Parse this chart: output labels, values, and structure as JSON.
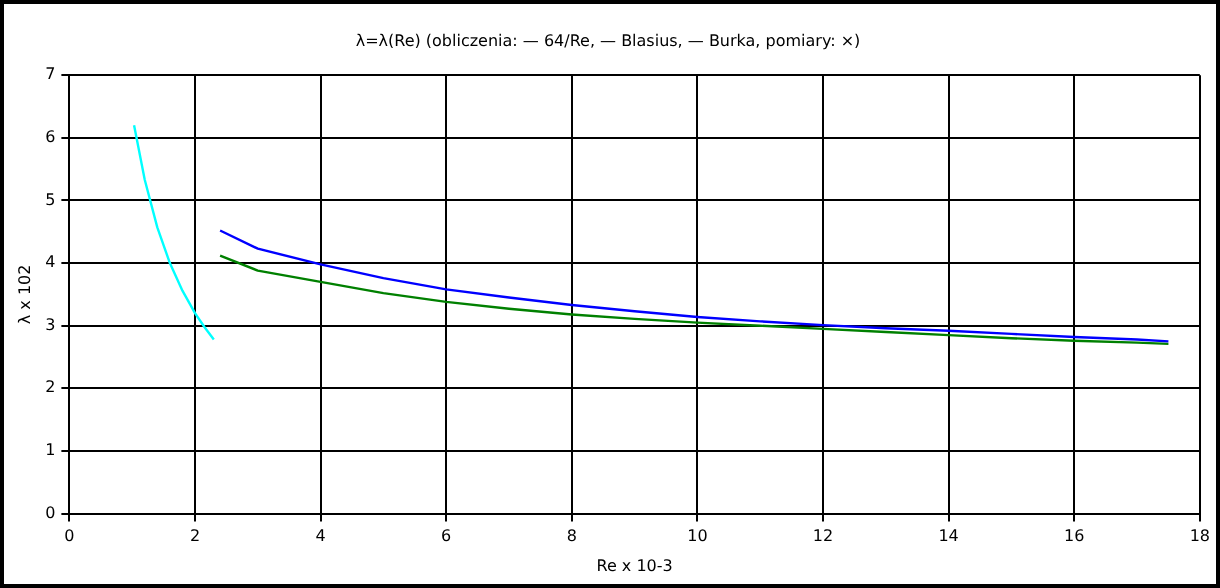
{
  "chart_data": {
    "type": "line",
    "title": "λ=λ(Re) (obliczenia: — 64/Re, — Blasius, — Burka, pomiary: ×)",
    "xlabel": "Re x 10-3",
    "ylabel": "λ x 102",
    "xlim": [
      0,
      18
    ],
    "xticks": [
      0,
      2,
      4,
      6,
      8,
      10,
      12,
      14,
      16,
      18
    ],
    "ylim": [
      0,
      7
    ],
    "yticks": [
      0,
      1,
      2,
      3,
      4,
      5,
      6,
      7
    ],
    "grid": true,
    "legend": false,
    "marker": "none",
    "line_style": "solid",
    "series": [
      {
        "color": "#00ffff",
        "x": [
          1.03,
          1.2,
          1.4,
          1.6,
          1.8,
          2.0,
          2.15,
          2.3
        ],
        "values": [
          6.2,
          5.33,
          4.57,
          4.0,
          3.56,
          3.2,
          2.98,
          2.78
        ]
      },
      {
        "color": "#0000ff",
        "x": [
          2.4,
          3,
          4,
          5,
          6,
          7,
          8,
          9,
          10,
          11,
          12,
          13,
          14,
          15,
          16,
          17,
          17.5
        ],
        "values": [
          4.52,
          4.23,
          3.98,
          3.76,
          3.58,
          3.45,
          3.33,
          3.23,
          3.14,
          3.07,
          3.01,
          2.96,
          2.92,
          2.87,
          2.82,
          2.78,
          2.75
        ]
      },
      {
        "color": "#008000",
        "x": [
          2.4,
          3,
          4,
          5,
          6,
          7,
          8,
          9,
          10,
          11,
          12,
          13,
          14,
          15,
          16,
          17,
          17.5
        ],
        "values": [
          4.12,
          3.88,
          3.7,
          3.52,
          3.38,
          3.27,
          3.18,
          3.11,
          3.05,
          3.0,
          2.95,
          2.9,
          2.85,
          2.8,
          2.76,
          2.73,
          2.71
        ]
      }
    ]
  }
}
